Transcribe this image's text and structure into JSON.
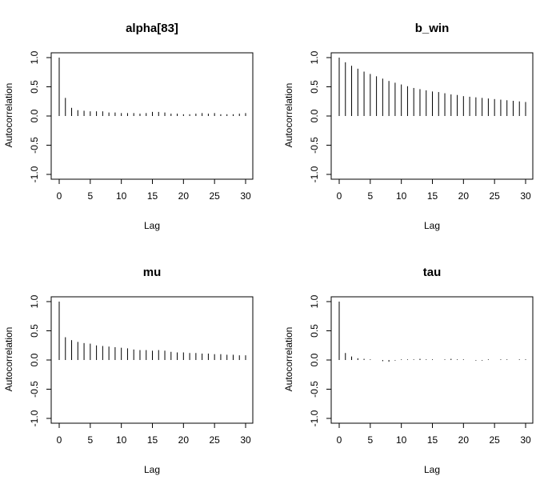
{
  "chart_data": [
    {
      "type": "bar",
      "title": "alpha[83]",
      "xlabel": "Lag",
      "ylabel": "Autocorrelation",
      "xlim": [
        0,
        30
      ],
      "ylim": [
        -1,
        1
      ],
      "x_ticks": [
        "0",
        "5",
        "10",
        "15",
        "20",
        "25",
        "30"
      ],
      "y_ticks": [
        "-1.0",
        "-0.5",
        "0.0",
        "0.5",
        "1.0"
      ],
      "x": [
        0,
        1,
        2,
        3,
        4,
        5,
        6,
        7,
        8,
        9,
        10,
        11,
        12,
        13,
        14,
        15,
        16,
        17,
        18,
        19,
        20,
        21,
        22,
        23,
        24,
        25,
        26,
        27,
        28,
        29,
        30
      ],
      "values": [
        1.0,
        0.31,
        0.14,
        0.1,
        0.09,
        0.08,
        0.08,
        0.08,
        0.06,
        0.06,
        0.05,
        0.05,
        0.05,
        0.04,
        0.05,
        0.07,
        0.07,
        0.06,
        0.04,
        0.04,
        0.03,
        0.03,
        0.04,
        0.05,
        0.04,
        0.05,
        0.03,
        0.03,
        0.03,
        0.04,
        0.05
      ]
    },
    {
      "type": "bar",
      "title": "b_win",
      "xlabel": "Lag",
      "ylabel": "Autocorrelation",
      "xlim": [
        0,
        30
      ],
      "ylim": [
        -1,
        1
      ],
      "x_ticks": [
        "0",
        "5",
        "10",
        "15",
        "20",
        "25",
        "30"
      ],
      "y_ticks": [
        "-1.0",
        "-0.5",
        "0.0",
        "0.5",
        "1.0"
      ],
      "x": [
        0,
        1,
        2,
        3,
        4,
        5,
        6,
        7,
        8,
        9,
        10,
        11,
        12,
        13,
        14,
        15,
        16,
        17,
        18,
        19,
        20,
        21,
        22,
        23,
        24,
        25,
        26,
        27,
        28,
        29,
        30
      ],
      "values": [
        1.0,
        0.92,
        0.86,
        0.81,
        0.76,
        0.72,
        0.68,
        0.64,
        0.6,
        0.57,
        0.54,
        0.51,
        0.48,
        0.46,
        0.44,
        0.42,
        0.41,
        0.39,
        0.37,
        0.36,
        0.34,
        0.33,
        0.32,
        0.31,
        0.3,
        0.29,
        0.28,
        0.27,
        0.26,
        0.25,
        0.24
      ]
    },
    {
      "type": "bar",
      "title": "mu",
      "xlabel": "Lag",
      "ylabel": "Autocorrelation",
      "xlim": [
        0,
        30
      ],
      "ylim": [
        -1,
        1
      ],
      "x_ticks": [
        "0",
        "5",
        "10",
        "15",
        "20",
        "25",
        "30"
      ],
      "y_ticks": [
        "-1.0",
        "-0.5",
        "0.0",
        "0.5",
        "1.0"
      ],
      "x": [
        0,
        1,
        2,
        3,
        4,
        5,
        6,
        7,
        8,
        9,
        10,
        11,
        12,
        13,
        14,
        15,
        16,
        17,
        18,
        19,
        20,
        21,
        22,
        23,
        24,
        25,
        26,
        27,
        28,
        29,
        30
      ],
      "values": [
        1.0,
        0.39,
        0.34,
        0.31,
        0.29,
        0.28,
        0.25,
        0.24,
        0.23,
        0.22,
        0.21,
        0.2,
        0.18,
        0.17,
        0.17,
        0.16,
        0.17,
        0.16,
        0.14,
        0.13,
        0.13,
        0.12,
        0.12,
        0.11,
        0.11,
        0.1,
        0.1,
        0.09,
        0.09,
        0.08,
        0.08
      ]
    },
    {
      "type": "bar",
      "title": "tau",
      "xlabel": "Lag",
      "ylabel": "Autocorrelation",
      "xlim": [
        0,
        30
      ],
      "ylim": [
        -1,
        1
      ],
      "x_ticks": [
        "0",
        "5",
        "10",
        "15",
        "20",
        "25",
        "30"
      ],
      "y_ticks": [
        "-1.0",
        "-0.5",
        "0.0",
        "0.5",
        "1.0"
      ],
      "x": [
        0,
        1,
        2,
        3,
        4,
        5,
        6,
        7,
        8,
        9,
        10,
        11,
        12,
        13,
        14,
        15,
        16,
        17,
        18,
        19,
        20,
        21,
        22,
        23,
        24,
        25,
        26,
        27,
        28,
        29,
        30
      ],
      "values": [
        1.0,
        0.12,
        0.06,
        0.03,
        0.02,
        0.01,
        0.0,
        -0.02,
        -0.03,
        -0.01,
        0.01,
        0.01,
        0.01,
        0.02,
        0.01,
        0.01,
        0.0,
        0.01,
        0.02,
        0.01,
        0.01,
        0.0,
        -0.01,
        -0.01,
        0.01,
        0.0,
        0.01,
        0.01,
        0.0,
        0.01,
        0.01
      ]
    }
  ]
}
